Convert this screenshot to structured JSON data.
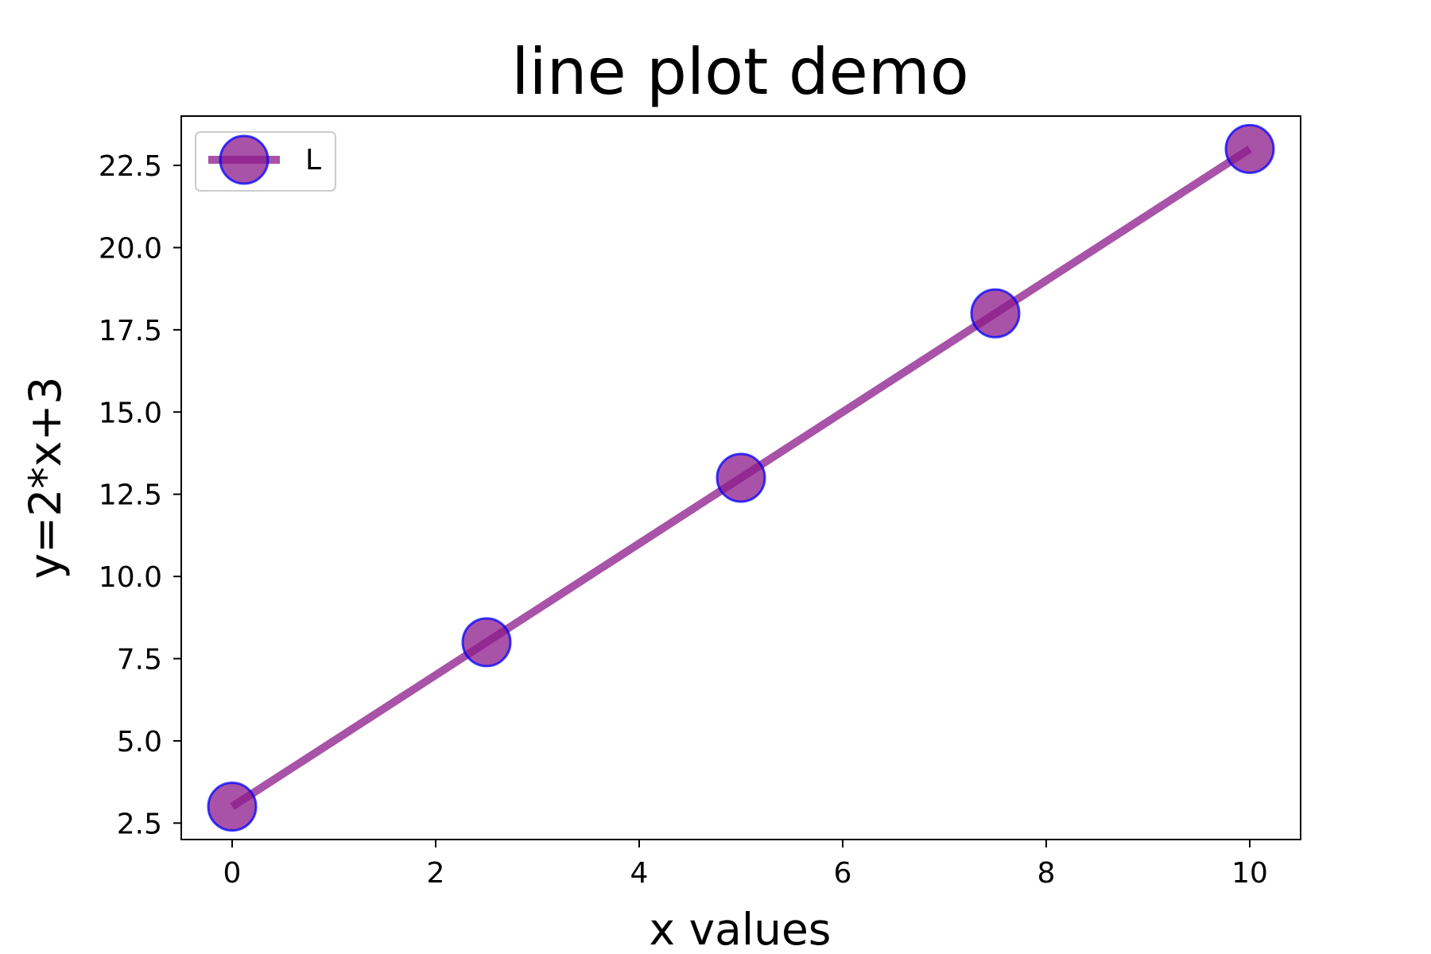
{
  "chart_data": {
    "type": "line",
    "title": "line plot demo",
    "xlabel": "x values",
    "ylabel": "y=2*x+3",
    "xlim": [
      -0.5,
      10.5
    ],
    "ylim": [
      2.0,
      24.0
    ],
    "xticks": [
      0,
      2,
      4,
      6,
      8,
      10
    ],
    "xtick_labels": [
      "0",
      "2",
      "4",
      "6",
      "8",
      "10"
    ],
    "yticks": [
      2.5,
      5.0,
      7.5,
      10.0,
      12.5,
      15.0,
      17.5,
      20.0,
      22.5
    ],
    "ytick_labels": [
      "2.5",
      "5.0",
      "7.5",
      "10.0",
      "12.5",
      "15.0",
      "17.5",
      "20.0",
      "22.5"
    ],
    "grid": false,
    "legend_position": "top-left",
    "series": [
      {
        "name": "L",
        "x": [
          0,
          2.5,
          5,
          7.5,
          10
        ],
        "y": [
          3,
          8,
          13,
          18,
          23
        ],
        "line_color": "#8B1A8B",
        "marker": "circle",
        "marker_face_color": "#8B1A8B",
        "marker_edge_color": "#0000FF",
        "alpha": 0.75
      }
    ]
  }
}
